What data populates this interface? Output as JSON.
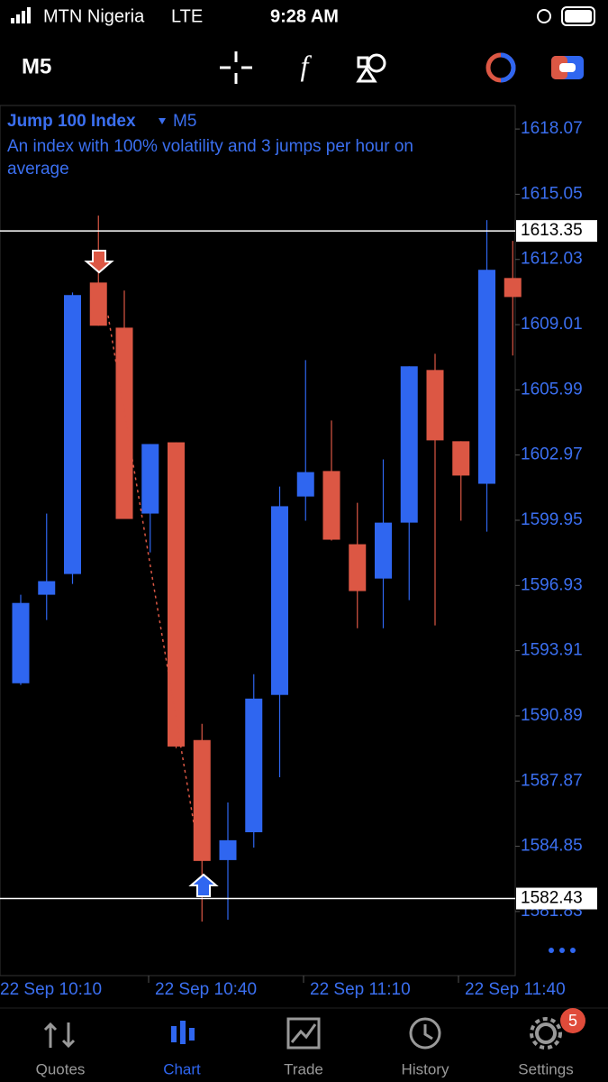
{
  "status_bar": {
    "carrier": "MTN Nigeria",
    "network": "LTE",
    "time": "9:28 AM"
  },
  "chart_data": {
    "type": "candlestick",
    "symbol": "Jump 100 Index",
    "timeframe": "M5",
    "description": "An index with 100% volatility and 3 jumps per hour on average",
    "open": [
      1592.4,
      1596.5,
      1597.46,
      1610.96,
      1608.87,
      1600.26,
      1603.56,
      1589.77,
      1584.21,
      1585.5,
      1591.86,
      1601.05,
      1602.23,
      1598.84,
      1597.25,
      1599.84,
      1606.91,
      1603.61,
      1601.64,
      1611.17
    ],
    "high": [
      1596.5,
      1600.26,
      1610.5,
      1614.06,
      1610.59,
      1603.48,
      1603.56,
      1590.52,
      1586.88,
      1592.82,
      1601.51,
      1607.37,
      1604.57,
      1600.76,
      1602.77,
      1607.08,
      1607.66,
      1603.61,
      1613.85,
      1612.89
    ],
    "low": [
      1592.32,
      1595.33,
      1597.0,
      1608.96,
      1600.01,
      1598.46,
      1589.39,
      1581.36,
      1581.45,
      1584.79,
      1588.05,
      1599.93,
      1599.01,
      1594.95,
      1594.95,
      1596.25,
      1595.08,
      1599.93,
      1599.42,
      1607.58
    ],
    "close": [
      1596.12,
      1597.13,
      1610.38,
      1608.96,
      1600.01,
      1603.48,
      1589.47,
      1584.17,
      1585.13,
      1591.69,
      1600.6,
      1602.18,
      1599.05,
      1596.67,
      1599.84,
      1607.08,
      1603.65,
      1602.02,
      1611.55,
      1610.29
    ],
    "up_color": "#2f66f0",
    "down_color": "#dc5744",
    "ylim": [
      1578.86,
      1619.16
    ],
    "yticks": [
      1618.07,
      1615.05,
      1612.03,
      1609.01,
      1605.99,
      1602.97,
      1599.95,
      1596.93,
      1593.91,
      1590.89,
      1587.87,
      1584.85,
      1581.83
    ],
    "price_lines": [
      1613.35,
      1582.43
    ],
    "x_tick_labels": [
      "22 Sep 10:10",
      "22 Sep 10:40",
      "22 Sep 11:10",
      "22 Sep 11:40"
    ]
  },
  "tab_bar": {
    "items": [
      "Quotes",
      "Chart",
      "Trade",
      "History",
      "Settings"
    ],
    "settings_badge": "5"
  }
}
